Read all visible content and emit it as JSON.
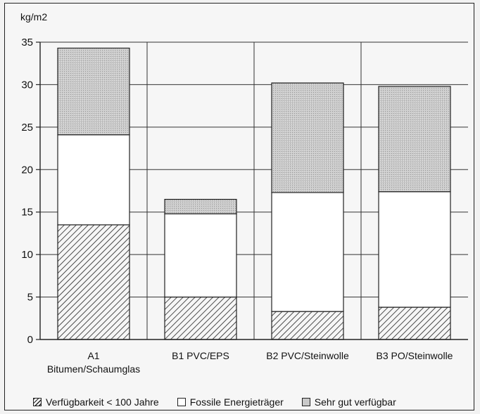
{
  "chart_data": {
    "type": "bar",
    "stacked": true,
    "unit_label": "kg/m2",
    "ylim": [
      0,
      35
    ],
    "yticks": [
      0,
      5,
      10,
      15,
      20,
      25,
      30,
      35
    ],
    "grid": true,
    "categories": [
      {
        "line1": "A1",
        "line2": "Bitumen/Schaumglas"
      },
      {
        "line1": "B1  PVC/EPS",
        "line2": ""
      },
      {
        "line1": "B2  PVC/Steinwolle",
        "line2": ""
      },
      {
        "line1": "B3  PO/Steinwolle",
        "line2": ""
      }
    ],
    "series": [
      {
        "name": "Verfügbarkeit < 100 Jahre",
        "values": [
          13.5,
          5.0,
          3.3,
          3.8
        ],
        "color": "#222222",
        "pattern": "hatch"
      },
      {
        "name": "Fossile Energieträger",
        "values": [
          10.6,
          9.8,
          14.0,
          13.6
        ],
        "color": "#ffffff",
        "pattern": "solid"
      },
      {
        "name": "Sehr gut verfügbar",
        "values": [
          10.2,
          1.7,
          12.9,
          12.4
        ],
        "color": "#c9c9c9",
        "pattern": "dots"
      }
    ],
    "legend_position": "bottom"
  }
}
